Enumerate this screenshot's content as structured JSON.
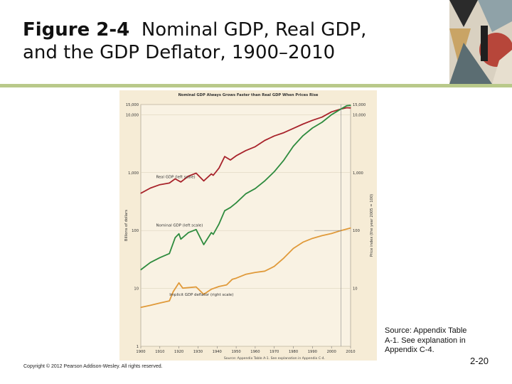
{
  "slide": {
    "title_bold": "Figure 2-4",
    "title_rest": "Nominal GDP, Real GDP,",
    "title_line2": "and the GDP Deflator, 1900–2010",
    "copyright": "Copyright © 2012 Pearson Addison-Wesley. All rights reserved.",
    "source": "Source: Appendix Table A-1. See explanation in Appendix C-4.",
    "slide_number": "2-20"
  },
  "colors": {
    "real_gdp": "#a8232b",
    "nominal_gdp": "#2e8b3e",
    "deflator": "#e09a3a",
    "chart_bg": "#f6ecd6",
    "band": "#b9c98a"
  },
  "chart_data": {
    "type": "line",
    "title": "Nominal GDP Always Grows Faster than Real GDP When Prices Rise",
    "ylabel_left": "Billions of dollars",
    "ylabel_right": "Price index (the year 2005 = 100)",
    "y_scale": "log",
    "ylim_left": [
      1,
      15000
    ],
    "ylim_right": [
      1,
      15000
    ],
    "yticks_left": [
      "1",
      "10",
      "100",
      "1,000",
      "10,000",
      "15,000"
    ],
    "yticks_right": [
      "10",
      "100",
      "1,000",
      "10,000",
      "15,000"
    ],
    "xlim": [
      1900,
      2010
    ],
    "xticks": [
      "1900",
      "1910",
      "1920",
      "1930",
      "1940",
      "1950",
      "1960",
      "1970",
      "1980",
      "1990",
      "2000",
      "2010"
    ],
    "source_note": "Source: Appendix Table A-1. See explanation in Appendix C-4.",
    "series": [
      {
        "name": "Real GDP (left scale)",
        "label": "Real GDP (left scale)",
        "x": [
          1900,
          1905,
          1910,
          1915,
          1918,
          1921,
          1925,
          1929,
          1933,
          1937,
          1938,
          1941,
          1944,
          1947,
          1950,
          1955,
          1960,
          1965,
          1970,
          1975,
          1980,
          1985,
          1990,
          1995,
          2000,
          2005,
          2008,
          2010
        ],
        "values": [
          440,
          540,
          620,
          660,
          780,
          690,
          870,
          980,
          720,
          950,
          900,
          1200,
          1900,
          1650,
          1950,
          2400,
          2800,
          3600,
          4300,
          4900,
          5800,
          6900,
          8000,
          9100,
          11200,
          12600,
          13200,
          13100
        ]
      },
      {
        "name": "Nominal GDP (left scale)",
        "label": "Nominal GDP (left scale)",
        "x": [
          1900,
          1905,
          1910,
          1915,
          1918,
          1920,
          1921,
          1925,
          1929,
          1933,
          1937,
          1938,
          1941,
          1944,
          1947,
          1950,
          1955,
          1960,
          1965,
          1970,
          1975,
          1980,
          1985,
          1990,
          1995,
          2000,
          2005,
          2008,
          2010
        ],
        "values": [
          21,
          28,
          34,
          40,
          75,
          88,
          71,
          92,
          104,
          57,
          92,
          86,
          130,
          220,
          250,
          300,
          430,
          530,
          720,
          1040,
          1640,
          2860,
          4340,
          5900,
          7400,
          10000,
          12600,
          14300,
          14500
        ]
      },
      {
        "name": "Implicit GDP deflator (right scale)",
        "label": "Implicit GDP deflator (right scale)",
        "x": [
          1900,
          1905,
          1910,
          1915,
          1917,
          1920,
          1922,
          1929,
          1933,
          1937,
          1941,
          1945,
          1948,
          1950,
          1955,
          1960,
          1965,
          1970,
          1975,
          1980,
          1985,
          1990,
          1995,
          2000,
          2005,
          2010
        ],
        "values": [
          4.7,
          5.1,
          5.6,
          6.1,
          8.8,
          12.5,
          10.1,
          10.6,
          7.9,
          9.7,
          10.8,
          11.5,
          14.4,
          15.0,
          17.5,
          18.9,
          19.9,
          24.0,
          33.4,
          49.0,
          62.8,
          73.3,
          81.5,
          88.6,
          100,
          110.7
        ]
      }
    ]
  }
}
